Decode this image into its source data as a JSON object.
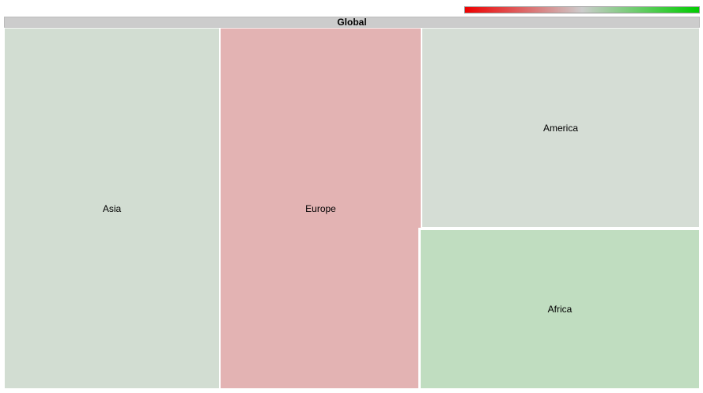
{
  "chart_data": {
    "type": "treemap",
    "root": "Global",
    "nodes": [
      {
        "label": "Asia",
        "color": "#d2ddd2"
      },
      {
        "label": "Europe",
        "color": "#e3b3b3"
      },
      {
        "label": "America",
        "color": "#d5ddd5"
      },
      {
        "label": "Africa",
        "color": "#c0ddc0"
      }
    ],
    "color_scale": {
      "min_color": "#ee0000",
      "mid_color": "#cccccc",
      "max_color": "#00cc00"
    }
  }
}
